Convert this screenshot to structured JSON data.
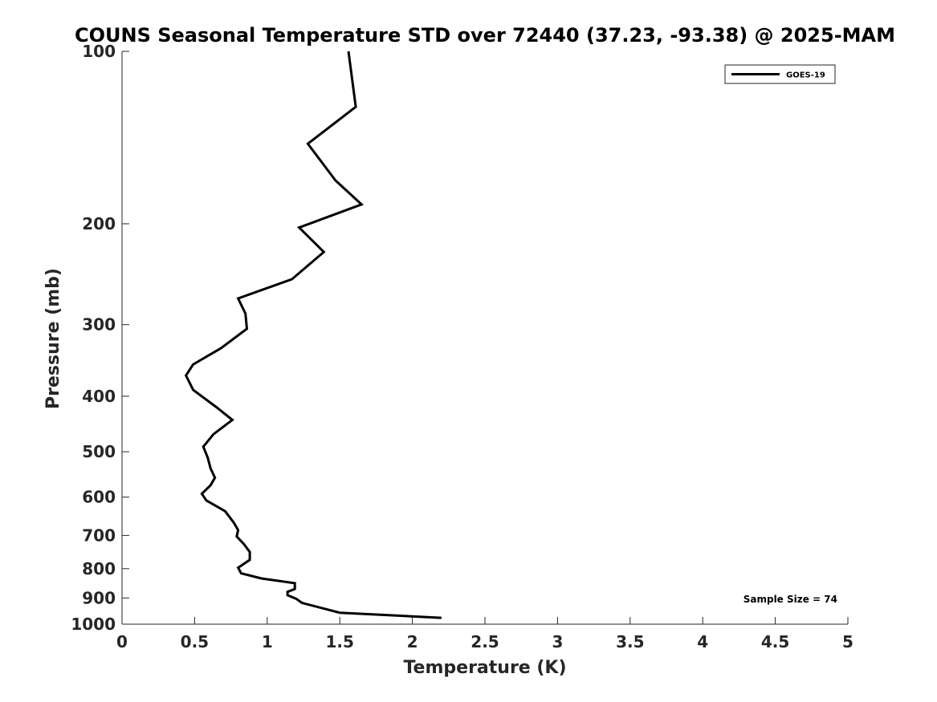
{
  "chart_data": {
    "type": "line",
    "title": "COUNS Seasonal Temperature STD over 72440 (37.23, -93.38) @ 2025-MAM",
    "xlabel": "Temperature (K)",
    "ylabel": "Pressure (mb)",
    "xlim": [
      0,
      5
    ],
    "ylim": [
      100,
      1000
    ],
    "y_scale": "log",
    "y_reversed": true,
    "grid": false,
    "x_ticks": [
      0,
      0.5,
      1,
      1.5,
      2,
      2.5,
      3,
      3.5,
      4,
      4.5,
      5
    ],
    "x_tick_labels": [
      "0",
      "0.5",
      "1",
      "1.5",
      "2",
      "2.5",
      "3",
      "3.5",
      "4",
      "4.5",
      "5"
    ],
    "y_ticks": [
      100,
      200,
      300,
      400,
      500,
      600,
      700,
      800,
      900,
      1000
    ],
    "y_tick_labels": [
      "100",
      "200",
      "300",
      "400",
      "500",
      "600",
      "700",
      "800",
      "900",
      "1000"
    ],
    "legend_position": "top-right",
    "series": [
      {
        "name": "GOES-19",
        "color": "#000000",
        "x": [
          1.56,
          1.61,
          1.28,
          1.47,
          1.65,
          1.22,
          1.39,
          1.17,
          0.8,
          0.85,
          0.86,
          0.68,
          0.49,
          0.44,
          0.49,
          0.65,
          0.76,
          0.63,
          0.56,
          0.59,
          0.61,
          0.64,
          0.61,
          0.55,
          0.58,
          0.71,
          0.77,
          0.8,
          0.79,
          0.84,
          0.88,
          0.88,
          0.8,
          0.82,
          0.96,
          1.19,
          1.19,
          1.14,
          1.14,
          1.2,
          1.24,
          1.5,
          2.2
        ],
        "y": [
          100,
          125,
          145,
          168,
          185,
          203,
          224,
          250,
          270,
          287,
          305,
          330,
          352,
          368,
          390,
          418,
          440,
          466,
          490,
          512,
          535,
          555,
          572,
          592,
          608,
          635,
          665,
          685,
          703,
          725,
          748,
          772,
          797,
          815,
          832,
          848,
          868,
          878,
          890,
          903,
          918,
          955,
          975
        ]
      }
    ],
    "annotations": [
      "Sample Size = 74"
    ]
  }
}
